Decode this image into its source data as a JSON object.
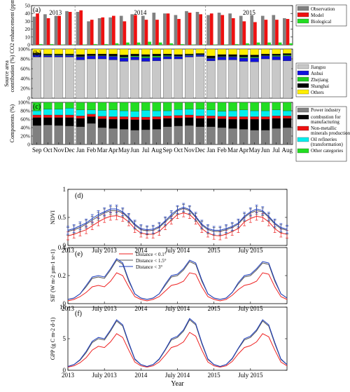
{
  "chart_data": [
    {
      "type": "bar",
      "panel_label": "(a)",
      "ylabel": "CO2 enhancement (ppm)",
      "ylim": [
        0,
        50
      ],
      "yticks": [
        "0",
        "10",
        "20",
        "30",
        "40",
        "50"
      ],
      "year_labels": [
        "2013",
        "2014",
        "2015"
      ],
      "series": [
        {
          "name": "Observation",
          "color": "#808080",
          "values": [
            36,
            39,
            37,
            43,
            42,
            30,
            34,
            35,
            37,
            39,
            37,
            41,
            40,
            38,
            43,
            42,
            38,
            41,
            40,
            37,
            38,
            37,
            38,
            34
          ]
        },
        {
          "name": "Model",
          "color": "#ee1111",
          "values": [
            40,
            34,
            37,
            42,
            44,
            32,
            35,
            37,
            30,
            38,
            32,
            32,
            40,
            33,
            41,
            39,
            40,
            38,
            34,
            30,
            29,
            32,
            32,
            33
          ]
        },
        {
          "name": "Biological",
          "color": "#22dd22",
          "values": [
            1,
            1,
            0.5,
            0.5,
            0.5,
            1,
            1,
            2,
            3,
            3,
            4,
            3,
            2,
            1,
            0.5,
            0.5,
            0.5,
            0.5,
            1,
            2,
            3,
            3,
            3,
            2
          ]
        }
      ]
    },
    {
      "type": "bar",
      "stacked": true,
      "panel_label": "(b)",
      "ylabel": "Source area contribution (%)",
      "ylim": [
        0,
        100
      ],
      "yticks": [
        "0",
        "20%",
        "40%",
        "60%",
        "80%",
        "100%"
      ],
      "series": [
        {
          "name": "Jiangsu",
          "color": "#c8c8c8",
          "values": [
            84,
            84,
            84,
            84,
            78,
            80,
            80,
            78,
            75,
            78,
            75,
            76,
            80,
            80,
            84,
            85,
            76,
            78,
            78,
            75,
            74,
            80,
            78,
            76
          ]
        },
        {
          "name": "Anhui",
          "color": "#1010dd",
          "values": [
            4,
            3,
            3,
            3,
            6,
            6,
            6,
            7,
            7,
            6,
            7,
            7,
            5,
            5,
            3,
            3,
            5,
            6,
            6,
            7,
            8,
            6,
            7,
            10
          ]
        },
        {
          "name": "Zhejiang",
          "color": "#22cc22",
          "values": [
            1,
            1,
            1,
            1,
            1,
            1,
            1,
            1,
            2,
            2,
            3,
            3,
            2,
            1,
            1,
            1,
            1,
            1,
            1,
            2,
            2,
            1,
            2,
            2
          ]
        },
        {
          "name": "Shanghai",
          "color": "#000000",
          "values": [
            3,
            2,
            2,
            2,
            4,
            3,
            3,
            4,
            4,
            4,
            4,
            4,
            3,
            3,
            2,
            2,
            4,
            4,
            4,
            4,
            4,
            3,
            3,
            3
          ]
        },
        {
          "name": "Others",
          "color": "#ffee00",
          "values": [
            8,
            10,
            10,
            10,
            11,
            10,
            10,
            10,
            12,
            10,
            11,
            10,
            10,
            11,
            10,
            9,
            14,
            11,
            11,
            12,
            12,
            10,
            10,
            9
          ]
        }
      ]
    },
    {
      "type": "bar",
      "stacked": true,
      "panel_label": "(c)",
      "ylabel": "Components (%)",
      "ylim": [
        0,
        100
      ],
      "yticks": [
        "0",
        "20%",
        "40%",
        "60%",
        "80%",
        "100%"
      ],
      "categories": [
        "Sep",
        "Oct",
        "Nov",
        "Dec",
        "Jan",
        "Feb",
        "Mar",
        "Apr",
        "May",
        "Jun",
        "Jul",
        "Aug",
        "Sep",
        "Oct",
        "Nov",
        "Dec",
        "Jan",
        "Feb",
        "Mar",
        "Apr",
        "May",
        "Jun",
        "Jul",
        "Aug"
      ],
      "series": [
        {
          "name": "Power industry",
          "color": "#808080",
          "values": [
            45,
            46,
            45,
            44,
            42,
            50,
            40,
            38,
            36,
            34,
            35,
            36,
            42,
            44,
            45,
            42,
            42,
            40,
            38,
            36,
            34,
            34,
            38,
            40
          ]
        },
        {
          "name": "combustion for manufacturing",
          "color": "#000000",
          "values": [
            19,
            18,
            19,
            20,
            20,
            16,
            21,
            22,
            24,
            25,
            24,
            24,
            20,
            19,
            19,
            20,
            20,
            21,
            22,
            24,
            26,
            26,
            24,
            22
          ]
        },
        {
          "name": "Non-metallic minerals production",
          "color": "#ee1111",
          "values": [
            6,
            6,
            6,
            6,
            6,
            6,
            6,
            6,
            6,
            6,
            6,
            6,
            6,
            6,
            6,
            6,
            6,
            6,
            6,
            6,
            6,
            6,
            6,
            6
          ]
        },
        {
          "name": "Oil refineries (transformation)",
          "color": "#00eeee",
          "values": [
            10,
            14,
            14,
            16,
            14,
            10,
            14,
            16,
            14,
            14,
            16,
            14,
            12,
            14,
            14,
            16,
            14,
            12,
            14,
            16,
            14,
            14,
            14,
            12
          ]
        },
        {
          "name": "Other categories",
          "color": "#22dd22",
          "values": [
            20,
            16,
            16,
            14,
            18,
            18,
            19,
            18,
            20,
            21,
            19,
            20,
            20,
            17,
            16,
            16,
            18,
            21,
            20,
            18,
            20,
            20,
            18,
            20
          ]
        }
      ]
    },
    {
      "type": "line",
      "panel_label": "(d)",
      "ylabel": "NDVI",
      "ylim": [
        0,
        1
      ],
      "yticks": [
        "0",
        "0.5",
        "1"
      ],
      "xticks": [
        "2013",
        "July 2013",
        "2014",
        "July 2014",
        "2015",
        "July 2015"
      ],
      "xlim": [
        0,
        36
      ],
      "series": [
        {
          "name": "Distance < 0.1°",
          "color": "#ee2222",
          "values": [
            0.17,
            0.2,
            0.24,
            0.28,
            0.35,
            0.42,
            0.48,
            0.52,
            0.53,
            0.5,
            0.42,
            0.3,
            0.22,
            0.2,
            0.2,
            0.25,
            0.35,
            0.45,
            0.55,
            0.58,
            0.55,
            0.45,
            0.3,
            0.22,
            0.18,
            0.17,
            0.2,
            0.25,
            0.3,
            0.42,
            0.48,
            0.52,
            0.5,
            0.42,
            0.3,
            0.22,
            0.2
          ]
        },
        {
          "name": "Distance < 1.5°",
          "color": "#555555",
          "values": [
            0.25,
            0.28,
            0.32,
            0.38,
            0.45,
            0.52,
            0.58,
            0.62,
            0.62,
            0.58,
            0.48,
            0.36,
            0.28,
            0.26,
            0.27,
            0.32,
            0.42,
            0.52,
            0.62,
            0.66,
            0.62,
            0.5,
            0.36,
            0.28,
            0.25,
            0.25,
            0.28,
            0.32,
            0.38,
            0.5,
            0.58,
            0.62,
            0.6,
            0.5,
            0.38,
            0.3,
            0.27
          ]
        },
        {
          "name": "Distance < 3°",
          "color": "#1f3fbf",
          "values": [
            0.27,
            0.3,
            0.35,
            0.4,
            0.48,
            0.55,
            0.6,
            0.65,
            0.65,
            0.6,
            0.5,
            0.38,
            0.3,
            0.28,
            0.29,
            0.34,
            0.44,
            0.55,
            0.64,
            0.68,
            0.64,
            0.52,
            0.38,
            0.3,
            0.27,
            0.27,
            0.3,
            0.34,
            0.4,
            0.52,
            0.6,
            0.65,
            0.62,
            0.52,
            0.4,
            0.32,
            0.29
          ]
        }
      ]
    },
    {
      "type": "line",
      "panel_label": "(e)",
      "ylabel": "SIF (W m-2 µm-1 sr-1)",
      "ylim": [
        0,
        0.4
      ],
      "yticks": [
        "0",
        "0.2",
        "0.4"
      ],
      "xticks": [
        "2013",
        "July 2013",
        "2014",
        "July 2014",
        "2015",
        "July 2015"
      ],
      "xlim": [
        0,
        36
      ],
      "legend": [
        "Distance < 0.1°",
        "Distance < 1.5°",
        "Distance < 3°"
      ],
      "series": [
        {
          "name": "Distance < 0.1°",
          "color": "#ee2222",
          "values": [
            0.02,
            0.03,
            0.05,
            0.08,
            0.12,
            0.13,
            0.12,
            0.16,
            0.22,
            0.2,
            0.12,
            0.05,
            0.03,
            0.02,
            0.03,
            0.05,
            0.09,
            0.13,
            0.14,
            0.16,
            0.22,
            0.21,
            0.12,
            0.05,
            0.03,
            0.02,
            0.03,
            0.06,
            0.1,
            0.13,
            0.14,
            0.16,
            0.22,
            0.21,
            0.12,
            0.05,
            0.03
          ]
        },
        {
          "name": "Distance < 1.5°",
          "color": "#555555",
          "values": [
            0.03,
            0.04,
            0.07,
            0.12,
            0.18,
            0.19,
            0.18,
            0.24,
            0.31,
            0.28,
            0.16,
            0.07,
            0.04,
            0.03,
            0.04,
            0.07,
            0.13,
            0.19,
            0.2,
            0.24,
            0.3,
            0.28,
            0.16,
            0.07,
            0.04,
            0.03,
            0.04,
            0.08,
            0.14,
            0.19,
            0.2,
            0.24,
            0.29,
            0.28,
            0.16,
            0.07,
            0.04
          ]
        },
        {
          "name": "Distance < 3°",
          "color": "#1f3fbf",
          "values": [
            0.03,
            0.04,
            0.07,
            0.13,
            0.19,
            0.2,
            0.19,
            0.25,
            0.32,
            0.29,
            0.17,
            0.07,
            0.04,
            0.03,
            0.04,
            0.07,
            0.14,
            0.2,
            0.21,
            0.25,
            0.31,
            0.29,
            0.17,
            0.07,
            0.04,
            0.03,
            0.04,
            0.08,
            0.15,
            0.2,
            0.21,
            0.25,
            0.3,
            0.29,
            0.17,
            0.07,
            0.04
          ]
        }
      ]
    },
    {
      "type": "line",
      "panel_label": "(f)",
      "ylabel": "GPP (g C m-2 d-1)",
      "xlabel": "Year",
      "ylim": [
        0,
        10
      ],
      "yticks": [
        "0",
        "5",
        "10"
      ],
      "xticks": [
        "2013",
        "July 2013",
        "2014",
        "July 2014",
        "2015",
        "July 2015"
      ],
      "xlim": [
        0,
        36
      ],
      "series": [
        {
          "name": "Distance < 0.1°",
          "color": "#ee2222",
          "values": [
            0.5,
            0.7,
            1.2,
            2.0,
            3.2,
            3.8,
            3.6,
            4.5,
            5.8,
            5.2,
            3.2,
            1.3,
            0.7,
            0.5,
            0.7,
            1.3,
            2.4,
            3.6,
            3.9,
            4.5,
            6.0,
            5.4,
            3.2,
            1.3,
            0.7,
            0.5,
            0.7,
            1.4,
            2.6,
            3.6,
            3.9,
            4.5,
            5.8,
            5.3,
            3.2,
            1.3,
            0.7
          ]
        },
        {
          "name": "Distance < 1.5°",
          "color": "#555555",
          "values": [
            0.6,
            0.9,
            1.6,
            2.8,
            4.4,
            5.0,
            4.8,
            6.2,
            7.8,
            7.0,
            4.2,
            1.7,
            0.9,
            0.6,
            0.9,
            1.7,
            3.2,
            4.8,
            5.2,
            6.2,
            8.0,
            7.2,
            4.2,
            1.7,
            0.9,
            0.6,
            0.9,
            1.8,
            3.4,
            4.8,
            5.2,
            6.2,
            7.8,
            7.0,
            4.2,
            1.7,
            0.9
          ]
        },
        {
          "name": "Distance < 3°",
          "color": "#1f3fbf",
          "values": [
            0.6,
            0.9,
            1.7,
            3.0,
            4.6,
            5.2,
            5.0,
            6.4,
            8.0,
            7.2,
            4.4,
            1.8,
            0.9,
            0.6,
            0.9,
            1.8,
            3.3,
            5.0,
            5.4,
            6.4,
            8.2,
            7.4,
            4.4,
            1.8,
            0.9,
            0.6,
            0.9,
            1.9,
            3.5,
            5.0,
            5.4,
            6.4,
            8.0,
            7.2,
            4.4,
            1.8,
            0.9
          ]
        }
      ]
    }
  ],
  "bar_legends": {
    "a": [
      "Observation",
      "Model",
      "Biological"
    ],
    "b": [
      "Jiangsu",
      "Anhui",
      "Zhejiang",
      "Shanghai",
      "Others"
    ],
    "c": [
      "Power industry",
      "combustion for manufacturing",
      "Non-metallic minerals production",
      "Oil refineries (transformation)",
      "Other categories"
    ]
  }
}
